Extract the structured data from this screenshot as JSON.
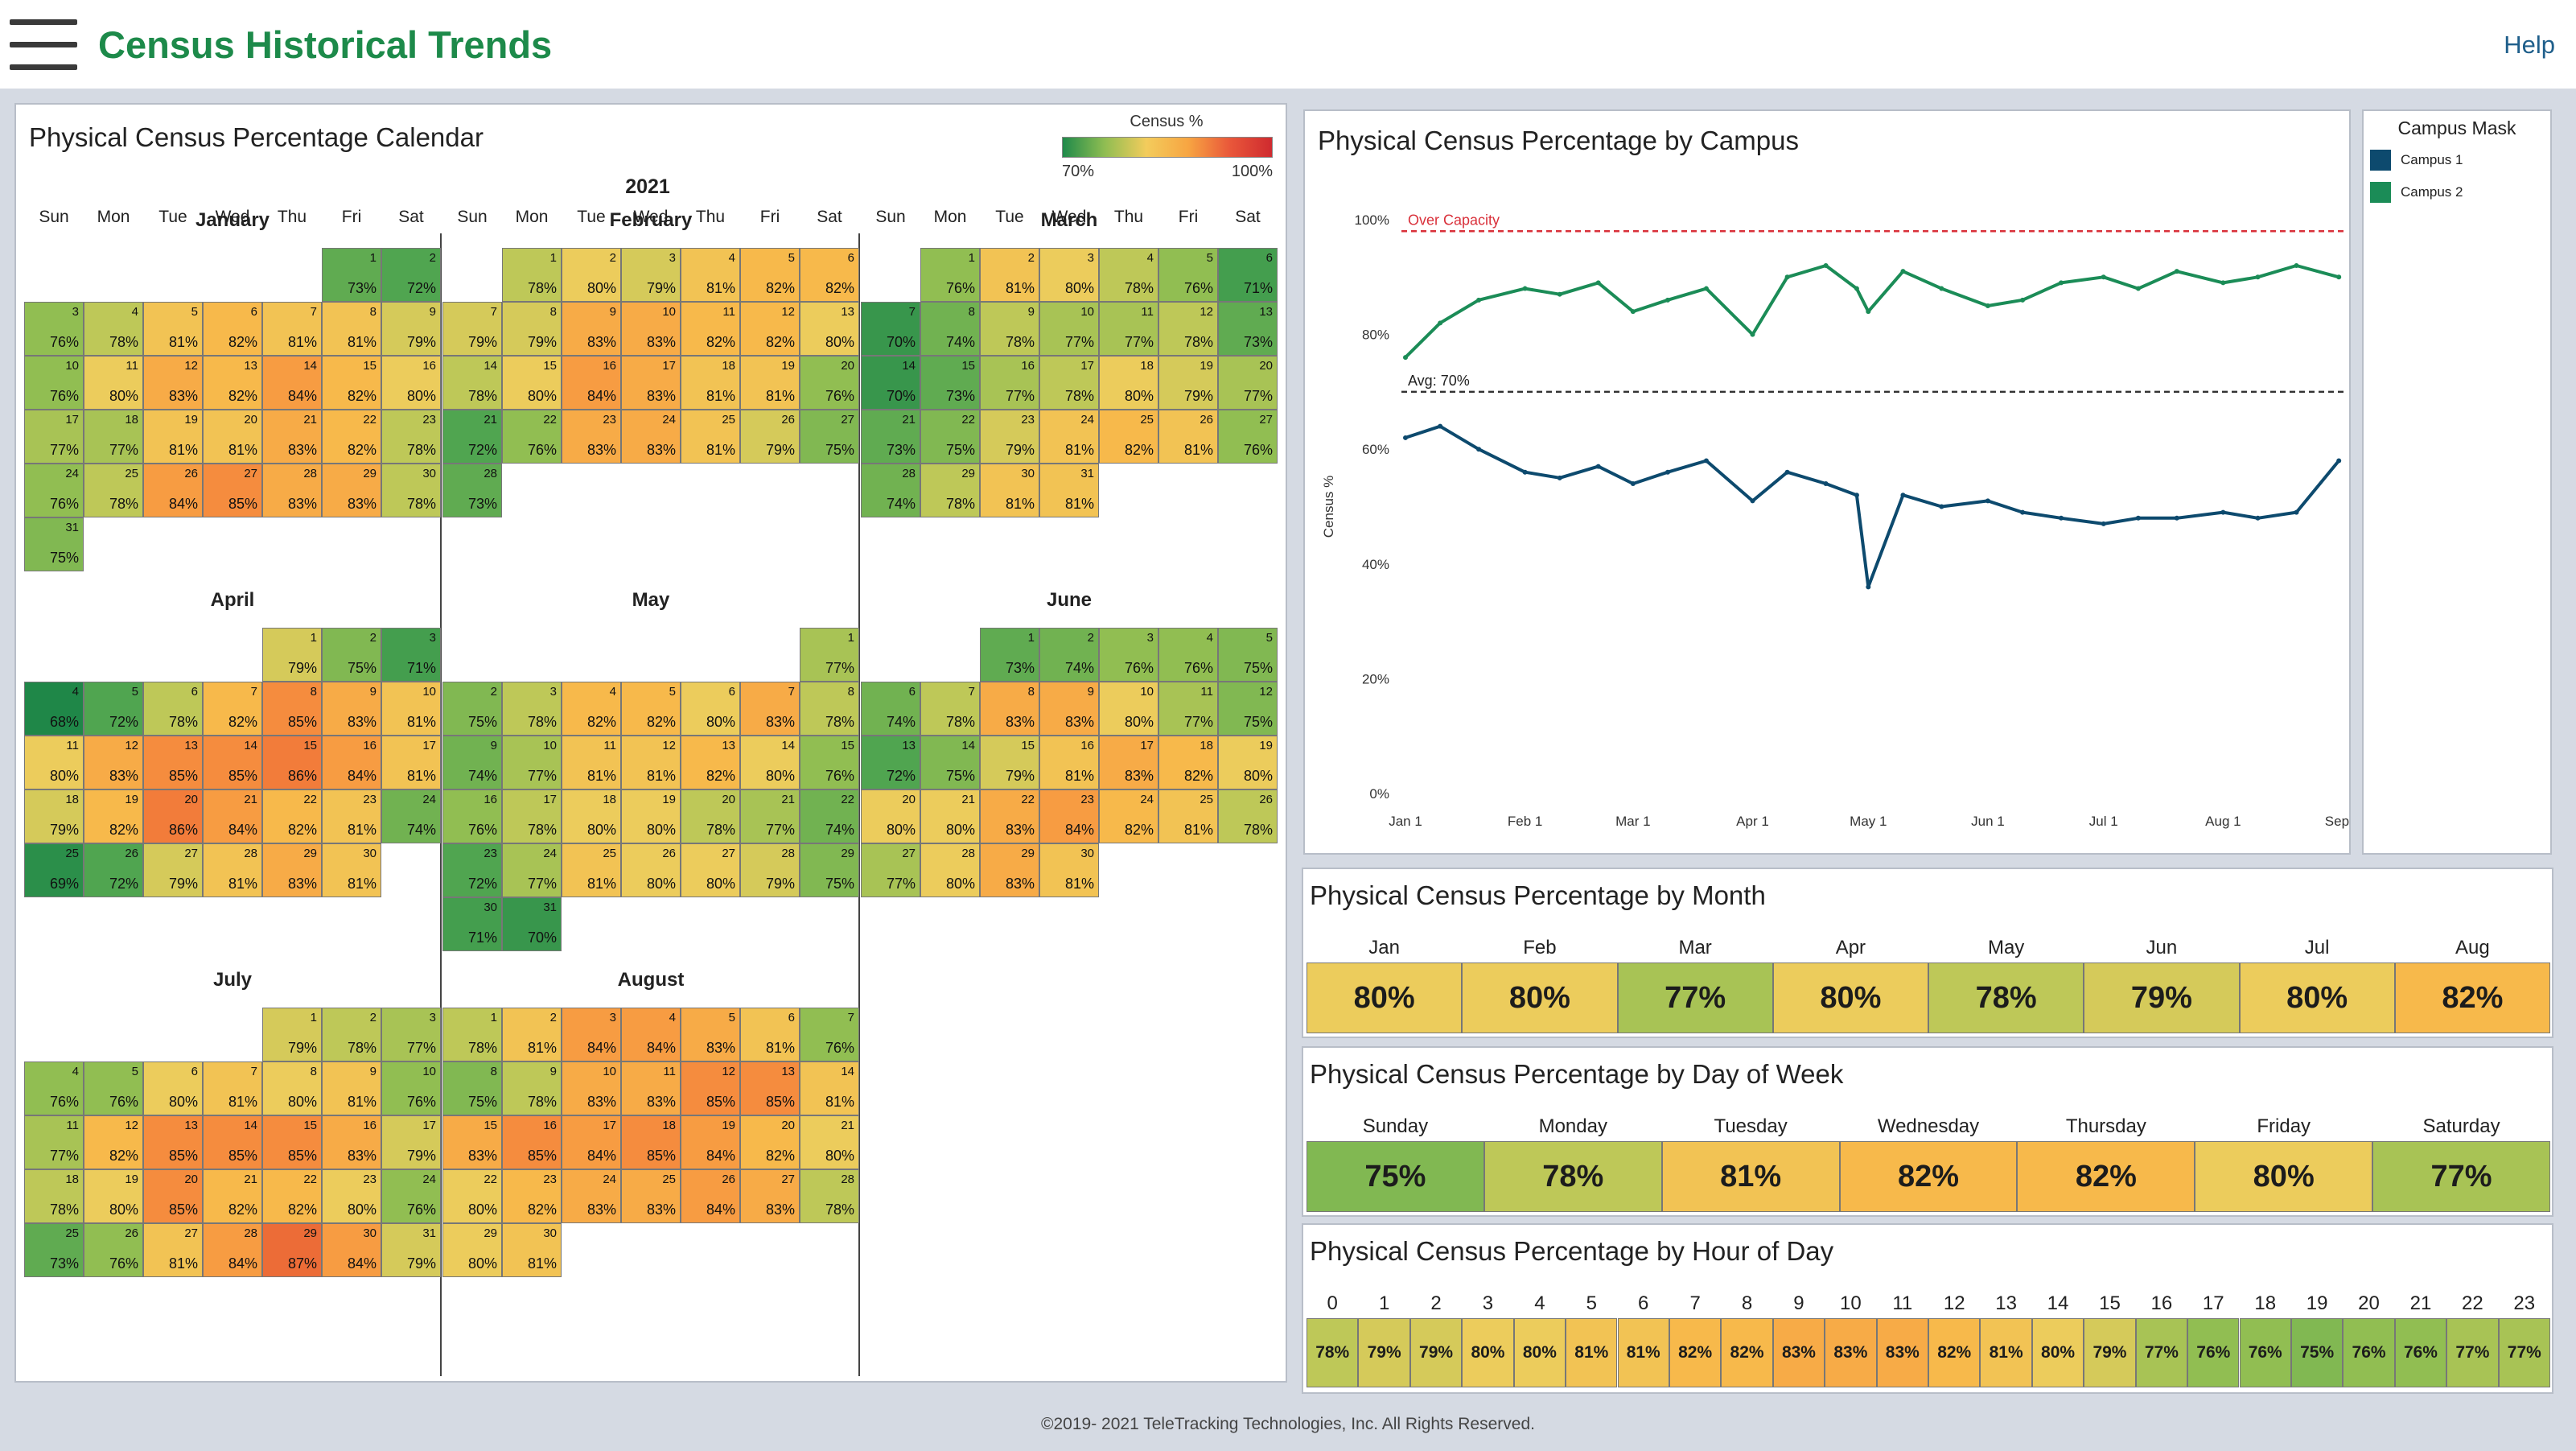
{
  "header": {
    "title": "Census Historical Trends",
    "help": "Help",
    "menu_icon": "hamburger-icon"
  },
  "colors": {
    "accent_green": "#1d8a4a",
    "campus1": "#0d4a6e",
    "campus2": "#1b8c57",
    "over_capacity_line": "#d9303a"
  },
  "calendar": {
    "title": "Physical Census Percentage Calendar",
    "year": "2021",
    "weekdays": [
      "Sun",
      "Mon",
      "Tue",
      "Wed",
      "Thu",
      "Fri",
      "Sat"
    ],
    "legend": {
      "title": "Census %",
      "min_label": "70%",
      "max_label": "100%"
    },
    "months": [
      {
        "name": "January",
        "values": [
          73,
          72,
          76,
          78,
          81,
          82,
          81,
          81,
          79,
          76,
          80,
          83,
          82,
          84,
          82,
          80,
          77,
          77,
          81,
          81,
          83,
          82,
          78,
          76,
          78,
          84,
          85,
          83,
          83,
          78,
          75
        ]
      },
      {
        "name": "February",
        "values": [
          78,
          80,
          79,
          81,
          82,
          82,
          79,
          79,
          83,
          83,
          82,
          82,
          80,
          78,
          80,
          84,
          83,
          81,
          81,
          76,
          72,
          76,
          83,
          83,
          81,
          79,
          75,
          73
        ]
      },
      {
        "name": "March",
        "values": [
          76,
          81,
          80,
          78,
          76,
          71,
          70,
          74,
          78,
          77,
          77,
          78,
          73,
          70,
          73,
          77,
          78,
          80,
          79,
          77,
          73,
          75,
          79,
          81,
          82,
          81,
          76,
          74,
          78,
          81,
          81
        ]
      },
      {
        "name": "April",
        "values": [
          79,
          75,
          71,
          68,
          72,
          78,
          82,
          85,
          83,
          81,
          80,
          83,
          85,
          85,
          86,
          84,
          81,
          79,
          82,
          86,
          84,
          82,
          81,
          74,
          69,
          72,
          79,
          81,
          83,
          81
        ]
      },
      {
        "name": "May",
        "values": [
          77,
          75,
          78,
          82,
          82,
          80,
          83,
          78,
          74,
          77,
          81,
          81,
          82,
          80,
          76,
          76,
          78,
          80,
          80,
          78,
          77,
          74,
          72,
          77,
          81,
          80,
          80,
          79,
          75,
          71,
          70
        ]
      },
      {
        "name": "June",
        "values": [
          73,
          74,
          76,
          76,
          75,
          74,
          78,
          83,
          83,
          80,
          77,
          75,
          72,
          75,
          79,
          81,
          83,
          82,
          80,
          80,
          80,
          83,
          84,
          82,
          81,
          78,
          77,
          80,
          83,
          81
        ]
      },
      {
        "name": "July",
        "values": [
          79,
          78,
          77,
          76,
          76,
          80,
          81,
          80,
          81,
          76,
          77,
          82,
          85,
          85,
          85,
          83,
          79,
          78,
          80,
          85,
          82,
          82,
          80,
          76,
          73,
          76,
          81,
          84,
          87,
          84,
          79
        ]
      },
      {
        "name": "August",
        "values": [
          78,
          81,
          84,
          84,
          83,
          81,
          76,
          75,
          78,
          83,
          83,
          85,
          85,
          81,
          83,
          85,
          84,
          85,
          84,
          82,
          80,
          80,
          82,
          83,
          83,
          84,
          83,
          78,
          80,
          81
        ]
      }
    ]
  },
  "campus_chart": {
    "title": "Physical Census Percentage by Campus",
    "over_capacity_label": "Over Capacity",
    "avg_label": "Avg: 70%",
    "legend_title": "Campus Mask",
    "legend": [
      {
        "name": "Campus 1",
        "color": "#0d4a6e"
      },
      {
        "name": "Campus 2",
        "color": "#1b8c57"
      }
    ]
  },
  "chart_data": {
    "type": "line",
    "ylabel": "Census %",
    "ylim": [
      0,
      100
    ],
    "y_ticks": [
      "0%",
      "20%",
      "40%",
      "60%",
      "80%",
      "100%"
    ],
    "x_ticks": [
      "Jan 1",
      "Feb 1",
      "Mar 1",
      "Apr 1",
      "May 1",
      "Jun 1",
      "Jul 1",
      "Aug 1",
      "Sep 1"
    ],
    "reference_lines": [
      {
        "label": "Over Capacity",
        "value": 98
      },
      {
        "label": "Avg: 70%",
        "value": 70
      }
    ],
    "series": [
      {
        "name": "Campus 1",
        "color": "#0d4a6e",
        "x": [
          "2021-01-01",
          "2021-01-10",
          "2021-01-20",
          "2021-02-01",
          "2021-02-10",
          "2021-02-20",
          "2021-03-01",
          "2021-03-10",
          "2021-03-20",
          "2021-04-01",
          "2021-04-10",
          "2021-04-20",
          "2021-04-28",
          "2021-05-01",
          "2021-05-10",
          "2021-05-20",
          "2021-06-01",
          "2021-06-10",
          "2021-06-20",
          "2021-07-01",
          "2021-07-10",
          "2021-07-20",
          "2021-08-01",
          "2021-08-10",
          "2021-08-20",
          "2021-08-31"
        ],
        "y": [
          62,
          64,
          60,
          56,
          55,
          57,
          54,
          56,
          58,
          51,
          56,
          54,
          52,
          36,
          52,
          50,
          51,
          49,
          48,
          47,
          48,
          48,
          49,
          48,
          49,
          58
        ]
      },
      {
        "name": "Campus 2",
        "color": "#1b8c57",
        "x": [
          "2021-01-01",
          "2021-01-10",
          "2021-01-20",
          "2021-02-01",
          "2021-02-10",
          "2021-02-20",
          "2021-03-01",
          "2021-03-10",
          "2021-03-20",
          "2021-04-01",
          "2021-04-10",
          "2021-04-20",
          "2021-04-28",
          "2021-05-01",
          "2021-05-10",
          "2021-05-20",
          "2021-06-01",
          "2021-06-10",
          "2021-06-20",
          "2021-07-01",
          "2021-07-10",
          "2021-07-20",
          "2021-08-01",
          "2021-08-10",
          "2021-08-20",
          "2021-08-31"
        ],
        "y": [
          76,
          82,
          86,
          88,
          87,
          89,
          84,
          86,
          88,
          80,
          90,
          92,
          88,
          84,
          91,
          88,
          85,
          86,
          89,
          90,
          88,
          91,
          89,
          90,
          92,
          90
        ]
      }
    ]
  },
  "by_month": {
    "title": "Physical Census Percentage by Month",
    "labels": [
      "Jan",
      "Feb",
      "Mar",
      "Apr",
      "May",
      "Jun",
      "Jul",
      "Aug"
    ],
    "values": [
      80,
      80,
      77,
      80,
      78,
      79,
      80,
      82
    ],
    "display": [
      "80%",
      "80%",
      "77%",
      "80%",
      "78%",
      "79%",
      "80%",
      "82%"
    ]
  },
  "by_dow": {
    "title": "Physical Census Percentage by Day of Week",
    "labels": [
      "Sunday",
      "Monday",
      "Tuesday",
      "Wednesday",
      "Thursday",
      "Friday",
      "Saturday"
    ],
    "values": [
      75,
      78,
      81,
      82,
      82,
      80,
      77
    ],
    "display": [
      "75%",
      "78%",
      "81%",
      "82%",
      "82%",
      "80%",
      "77%"
    ]
  },
  "by_hour": {
    "title": "Physical Census Percentage by Hour of Day",
    "labels": [
      "0",
      "1",
      "2",
      "3",
      "4",
      "5",
      "6",
      "7",
      "8",
      "9",
      "10",
      "11",
      "12",
      "13",
      "14",
      "15",
      "16",
      "17",
      "18",
      "19",
      "20",
      "21",
      "22",
      "23"
    ],
    "values": [
      78,
      79,
      79,
      80,
      80,
      81,
      81,
      82,
      82,
      83,
      83,
      83,
      82,
      81,
      80,
      79,
      77,
      76,
      76,
      75,
      76,
      76,
      77,
      77
    ],
    "display": [
      "78%",
      "79%",
      "79%",
      "80%",
      "80%",
      "81%",
      "81%",
      "82%",
      "82%",
      "83%",
      "83%",
      "83%",
      "82%",
      "81%",
      "80%",
      "79%",
      "77%",
      "76%",
      "76%",
      "75%",
      "76%",
      "76%",
      "77%",
      "77%"
    ]
  },
  "footer": "©2019- 2021 TeleTracking Technologies, Inc.  All Rights Reserved."
}
